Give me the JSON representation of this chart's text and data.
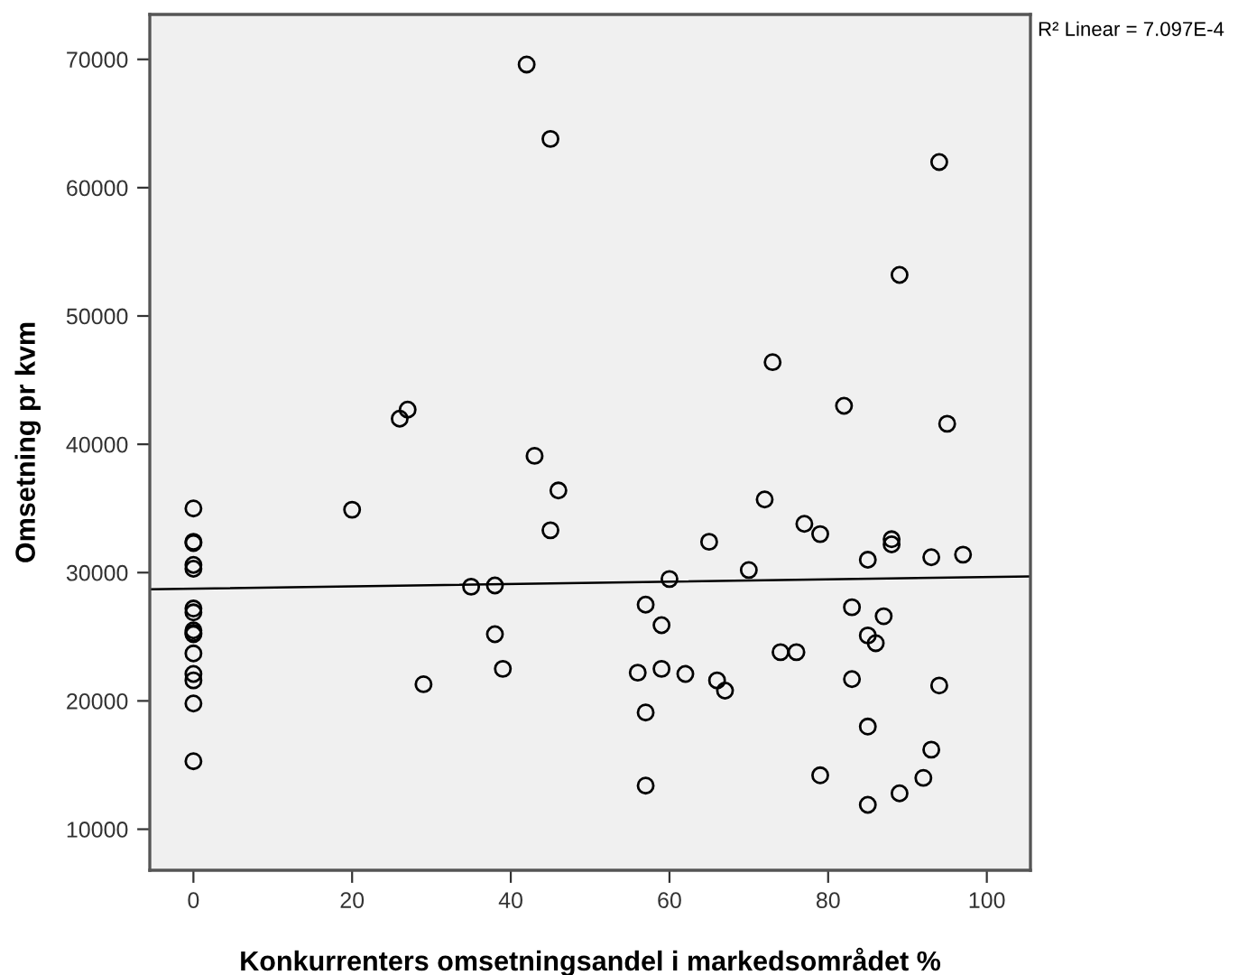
{
  "chart_data": {
    "type": "scatter",
    "xlabel": "Konkurrenters omsetningsandel i markedsområdet %",
    "ylabel": "Omsetning pr kvm",
    "annotations": [
      "R² Linear = 7.097E-4"
    ],
    "xlim": [
      -5.5,
      105.5
    ],
    "xticks": [
      0,
      20,
      40,
      60,
      80,
      100
    ],
    "ylim": [
      6800,
      73500
    ],
    "yticks": [
      10000,
      20000,
      30000,
      40000,
      50000,
      60000,
      70000
    ],
    "grid": false,
    "legend": false,
    "series": [
      {
        "color": "#000000",
        "marker": "circle",
        "x": [
          0,
          0,
          0,
          0,
          0,
          0,
          0,
          0,
          0,
          0,
          0,
          0,
          0,
          0,
          0,
          20,
          26,
          27,
          29,
          35,
          38,
          38,
          39,
          42,
          43,
          45,
          45,
          46,
          56,
          57,
          57,
          57,
          59,
          59,
          60,
          62,
          65,
          66,
          67,
          70,
          72,
          73,
          74,
          76,
          77,
          79,
          79,
          82,
          83,
          83,
          85,
          85,
          85,
          85,
          86,
          87,
          88,
          88,
          89,
          89,
          92,
          93,
          93,
          94,
          94,
          95,
          97
        ],
        "values": [
          35000,
          32400,
          32300,
          30600,
          30300,
          27200,
          26900,
          25500,
          25300,
          25200,
          23700,
          22100,
          21600,
          19800,
          15300,
          34900,
          42000,
          42700,
          21300,
          28900,
          29000,
          25200,
          22500,
          69600,
          39100,
          63800,
          33300,
          36400,
          22200,
          27500,
          19100,
          13400,
          25900,
          22500,
          29500,
          22100,
          32400,
          21600,
          20800,
          30200,
          35700,
          46400,
          23800,
          23800,
          33800,
          33000,
          14200,
          43000,
          27300,
          21700,
          31000,
          25100,
          18000,
          11900,
          24500,
          26600,
          32600,
          32200,
          53200,
          12800,
          14000,
          31200,
          16200,
          62000,
          21200,
          41600,
          31400
        ]
      },
      {
        "type": "line",
        "color": "#000000",
        "line_style": "solid",
        "x": [
          -5.5,
          105.5
        ],
        "values": [
          28700,
          29700
        ]
      }
    ]
  }
}
